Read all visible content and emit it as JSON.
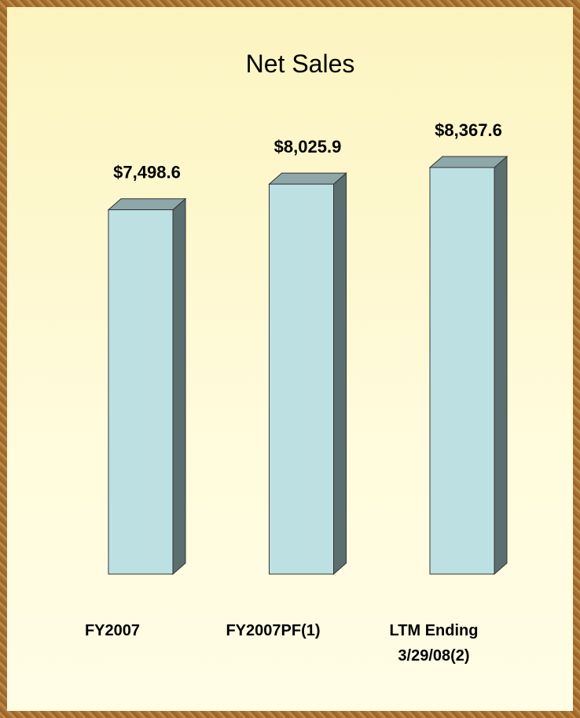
{
  "chart_data": {
    "type": "bar3d",
    "title": "Net Sales",
    "categories": [
      "FY2007",
      "FY2007PF(1)",
      "LTM Ending\n3/29/08(2)"
    ],
    "values": [
      7498.6,
      8025.9,
      8367.6
    ],
    "value_labels": [
      "$7,498.6",
      "$8,025.9",
      "$8,367.6"
    ],
    "color": "#bde0e3"
  }
}
